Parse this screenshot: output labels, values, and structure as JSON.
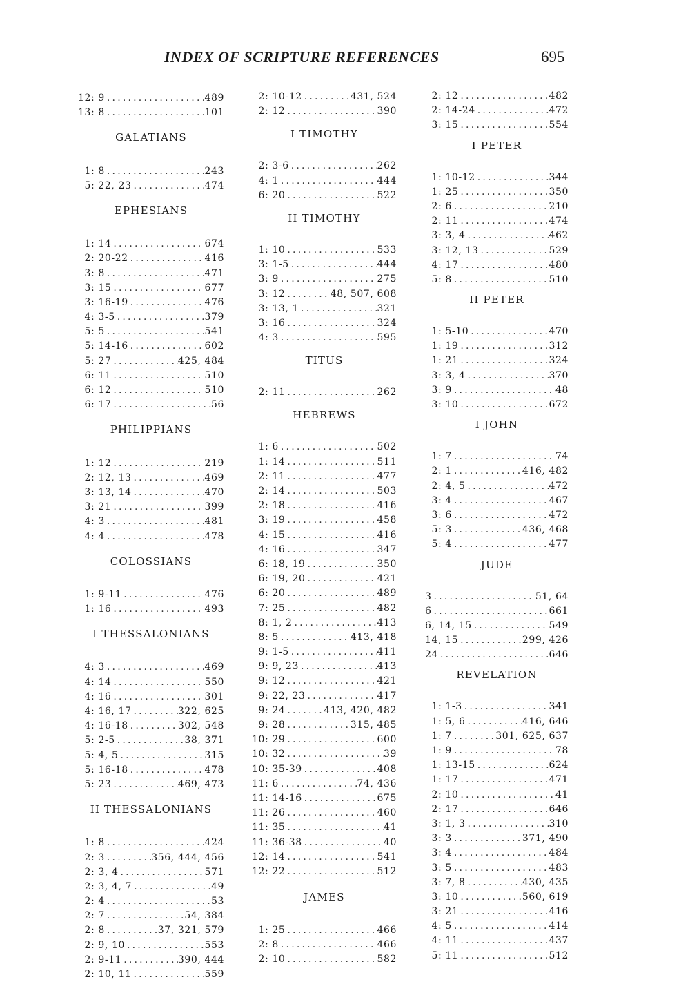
{
  "header": {
    "title": "INDEX OF SCRIPTURE REFERENCES",
    "page_number": "695"
  },
  "columns": [
    [
      {
        "ref": "12: 9",
        "pages": "489"
      },
      {
        "ref": "13: 8",
        "pages": "101"
      },
      {
        "heading": "GALATIANS"
      },
      {
        "ref": "1: 8",
        "pages": "243"
      },
      {
        "ref": "5: 22, 23",
        "pages": "474"
      },
      {
        "heading": "EPHESIANS"
      },
      {
        "ref": "1: 14",
        "pages": "674"
      },
      {
        "ref": "2: 20-22",
        "pages": "416"
      },
      {
        "ref": "3: 8",
        "pages": "471"
      },
      {
        "ref": "3: 15",
        "pages": "677"
      },
      {
        "ref": "3: 16-19",
        "pages": "476"
      },
      {
        "ref": "4: 3-5",
        "pages": "379"
      },
      {
        "ref": "5: 5",
        "pages": "541"
      },
      {
        "ref": "5: 14-16",
        "pages": "602"
      },
      {
        "ref": "5: 27",
        "pages": "425, 484"
      },
      {
        "ref": "6: 11",
        "pages": "510"
      },
      {
        "ref": "6: 12",
        "pages": "510"
      },
      {
        "ref": "6: 17",
        "pages": "56"
      },
      {
        "heading": "PHILIPPIANS"
      },
      {
        "ref": "1: 12",
        "pages": "219"
      },
      {
        "ref": "2: 12, 13",
        "pages": "469"
      },
      {
        "ref": "3: 13, 14",
        "pages": "470"
      },
      {
        "ref": "3: 21",
        "pages": "399"
      },
      {
        "ref": "4: 3",
        "pages": "481"
      },
      {
        "ref": "4: 4",
        "pages": "478"
      },
      {
        "heading": "COLOSSIANS"
      },
      {
        "ref": "1: 9-11",
        "pages": "476"
      },
      {
        "ref": "1: 16",
        "pages": "493"
      },
      {
        "heading": "I THESSALONIANS"
      },
      {
        "ref": "4: 3",
        "pages": "469"
      },
      {
        "ref": "4: 14",
        "pages": "550"
      },
      {
        "ref": "4: 16",
        "pages": "301"
      },
      {
        "ref": "4: 16, 17",
        "pages": "322, 625"
      },
      {
        "ref": "4: 16-18",
        "pages": "302, 548"
      },
      {
        "ref": "5: 2-5",
        "pages": "38, 371"
      },
      {
        "ref": "5: 4, 5",
        "pages": "315"
      },
      {
        "ref": "5: 16-18",
        "pages": "478"
      },
      {
        "ref": "5: 23",
        "pages": "469, 473"
      },
      {
        "heading": "II THESSALONIANS"
      },
      {
        "ref": "1: 8",
        "pages": "424"
      },
      {
        "ref": "2: 3",
        "pages": "356, 444, 456"
      },
      {
        "ref": "2: 3, 4",
        "pages": "571"
      },
      {
        "ref": "2: 3, 4, 7",
        "pages": "49"
      },
      {
        "ref": "2: 4",
        "pages": "53"
      },
      {
        "ref": "2: 7",
        "pages": "54, 384"
      },
      {
        "ref": "2: 8",
        "pages": "37, 321, 579"
      },
      {
        "ref": "2: 9, 10",
        "pages": "553"
      },
      {
        "ref": "2: 9-11",
        "pages": "390, 444"
      },
      {
        "ref": "2: 10, 11",
        "pages": "559"
      }
    ],
    [
      {
        "ref": "2: 10-12",
        "pages": "431, 524"
      },
      {
        "ref": "2: 12",
        "pages": "390"
      },
      {
        "heading": "I TIMOTHY"
      },
      {
        "ref": "2: 3-6",
        "pages": "262"
      },
      {
        "ref": "4: 1",
        "pages": "444"
      },
      {
        "ref": "6: 20",
        "pages": "522"
      },
      {
        "heading": "II TIMOTHY"
      },
      {
        "ref": "1: 10",
        "pages": "533"
      },
      {
        "ref": "3: 1-5",
        "pages": "444"
      },
      {
        "ref": "3: 9",
        "pages": "275"
      },
      {
        "ref": "3: 12",
        "pages": "48, 507, 608"
      },
      {
        "ref": "3: 13, 1",
        "pages": "321"
      },
      {
        "ref": "3: 16",
        "pages": "324"
      },
      {
        "ref": "4: 3",
        "pages": "595"
      },
      {
        "heading": "TITUS"
      },
      {
        "ref": "2: 11",
        "pages": "262"
      },
      {
        "heading": "HEBREWS"
      },
      {
        "ref": "1: 6",
        "pages": "502"
      },
      {
        "ref": "1: 14",
        "pages": "511"
      },
      {
        "ref": "2: 11",
        "pages": "477"
      },
      {
        "ref": "2: 14",
        "pages": "503"
      },
      {
        "ref": "2: 18",
        "pages": "416"
      },
      {
        "ref": "3: 19",
        "pages": "458"
      },
      {
        "ref": "4: 15",
        "pages": "416"
      },
      {
        "ref": "4: 16",
        "pages": "347"
      },
      {
        "ref": "6: 18, 19",
        "pages": "350"
      },
      {
        "ref": "6: 19, 20",
        "pages": "421"
      },
      {
        "ref": "6: 20",
        "pages": "489"
      },
      {
        "ref": "7: 25",
        "pages": "482"
      },
      {
        "ref": "8: 1, 2",
        "pages": "413"
      },
      {
        "ref": "8: 5",
        "pages": "413, 418"
      },
      {
        "ref": "9: 1-5",
        "pages": "411"
      },
      {
        "ref": "9: 9, 23",
        "pages": "413"
      },
      {
        "ref": "9: 12",
        "pages": "421"
      },
      {
        "ref": "9: 22, 23",
        "pages": "417"
      },
      {
        "ref": "9: 24",
        "pages": "413, 420, 482"
      },
      {
        "ref": "9: 28",
        "pages": "315, 485"
      },
      {
        "ref": "10: 29",
        "pages": "600"
      },
      {
        "ref": "10: 32",
        "pages": "39"
      },
      {
        "ref": "10: 35-39",
        "pages": "408"
      },
      {
        "ref": "11: 6",
        "pages": "74, 436"
      },
      {
        "ref": "11: 14-16",
        "pages": "675"
      },
      {
        "ref": "11: 26",
        "pages": "460"
      },
      {
        "ref": "11: 35",
        "pages": "41"
      },
      {
        "ref": "11: 36-38",
        "pages": "40"
      },
      {
        "ref": "12: 14",
        "pages": "541"
      },
      {
        "ref": "12: 22",
        "pages": "512"
      },
      {
        "heading": "JAMES"
      },
      {
        "ref": "1: 25",
        "pages": "466"
      },
      {
        "ref": "2: 8",
        "pages": "466"
      },
      {
        "ref": "2: 10",
        "pages": "582"
      }
    ],
    [
      {
        "ref": "2: 12",
        "pages": "482"
      },
      {
        "ref": "2: 14-24",
        "pages": "472"
      },
      {
        "ref": "3: 15",
        "pages": "554"
      },
      {
        "heading": "I PETER"
      },
      {
        "ref": "1: 10-12",
        "pages": "344"
      },
      {
        "ref": "1: 25",
        "pages": "350"
      },
      {
        "ref": "2: 6",
        "pages": "210"
      },
      {
        "ref": "2: 11",
        "pages": "474"
      },
      {
        "ref": "3: 3, 4",
        "pages": "462"
      },
      {
        "ref": "3: 12, 13",
        "pages": "529"
      },
      {
        "ref": "4: 17",
        "pages": "480"
      },
      {
        "ref": "5: 8",
        "pages": "510"
      },
      {
        "heading": "II PETER"
      },
      {
        "ref": "1: 5-10",
        "pages": "470"
      },
      {
        "ref": "1: 19",
        "pages": "312"
      },
      {
        "ref": "1: 21",
        "pages": "324"
      },
      {
        "ref": "3: 3, 4",
        "pages": "370"
      },
      {
        "ref": "3: 9",
        "pages": "48"
      },
      {
        "ref": "3: 10",
        "pages": "672"
      },
      {
        "heading": "I JOHN"
      },
      {
        "ref": "1: 7",
        "pages": "74"
      },
      {
        "ref": "2: 1",
        "pages": "416, 482"
      },
      {
        "ref": "2: 4, 5",
        "pages": "472"
      },
      {
        "ref": "3: 4",
        "pages": "467"
      },
      {
        "ref": "3: 6",
        "pages": "472"
      },
      {
        "ref": "5: 3",
        "pages": "436, 468"
      },
      {
        "ref": "5: 4",
        "pages": "477"
      },
      {
        "heading": "JUDE"
      },
      {
        "ref": "3",
        "pages": "51, 64"
      },
      {
        "ref": "6",
        "pages": "661"
      },
      {
        "ref": "6, 14, 15",
        "pages": "549"
      },
      {
        "ref": "14, 15",
        "pages": "299, 426"
      },
      {
        "ref": "24",
        "pages": "646"
      },
      {
        "heading": "REVELATION"
      },
      {
        "ref": "1: 1-3",
        "pages": "341"
      },
      {
        "ref": "1: 5, 6",
        "pages": "416, 646"
      },
      {
        "ref": "1: 7",
        "pages": "301, 625, 637"
      },
      {
        "ref": "1: 9",
        "pages": "78"
      },
      {
        "ref": "1: 13-15",
        "pages": "624"
      },
      {
        "ref": "1: 17",
        "pages": "471"
      },
      {
        "ref": "2: 10",
        "pages": "41"
      },
      {
        "ref": "2: 17",
        "pages": "646"
      },
      {
        "ref": "3: 1, 3",
        "pages": "310"
      },
      {
        "ref": "3: 3",
        "pages": "371, 490"
      },
      {
        "ref": "3: 4",
        "pages": "484"
      },
      {
        "ref": "3: 5",
        "pages": "483"
      },
      {
        "ref": "3: 7, 8",
        "pages": "430, 435"
      },
      {
        "ref": "3: 10",
        "pages": "560, 619"
      },
      {
        "ref": "3: 21",
        "pages": "416"
      },
      {
        "ref": "4: 5",
        "pages": "414"
      },
      {
        "ref": "4: 11",
        "pages": "437"
      },
      {
        "ref": "5: 11",
        "pages": "512"
      }
    ]
  ]
}
